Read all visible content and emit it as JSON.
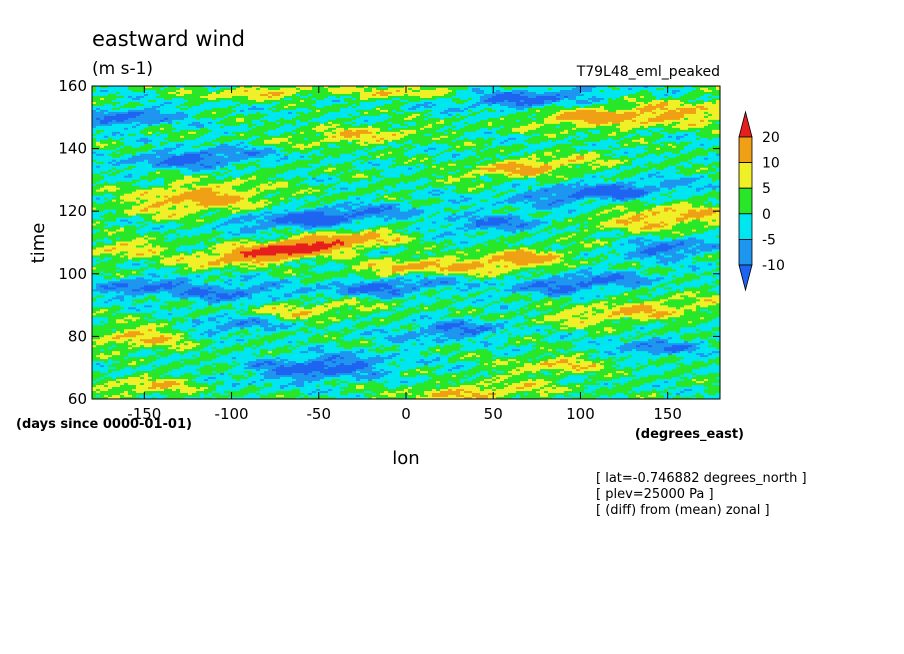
{
  "chart_data": {
    "type": "heatmap",
    "title": "eastward wind",
    "subtitle": "(m s-1)",
    "run_label": "T79L48_eml_peaked",
    "xlabel": "lon",
    "x_units": "(degrees_east)",
    "ylabel": "time",
    "y_units": "(days since 0000-01-01)",
    "xlim": [
      -180,
      180
    ],
    "ylim": [
      60,
      160
    ],
    "x_ticks": [
      -150,
      -100,
      -50,
      0,
      50,
      100,
      150
    ],
    "y_ticks": [
      60,
      80,
      100,
      120,
      140,
      160
    ],
    "colorbar": {
      "levels": [
        -10,
        -5,
        0,
        5,
        10,
        20
      ],
      "labels": [
        "20",
        "10",
        "5",
        "0",
        "-5",
        "-10"
      ],
      "colors": [
        "#1e64f0",
        "#1e96f0",
        "#00e6f0",
        "#28e628",
        "#f0f028",
        "#f0a014",
        "#e61e1e"
      ]
    },
    "anomalies": [
      {
        "lon": -65,
        "time": 108,
        "amp": 26,
        "sx": 50,
        "sy": 3,
        "tilt": 0.07
      },
      {
        "lon": -120,
        "time": 124,
        "amp": 13,
        "sx": 40,
        "sy": 5,
        "tilt": 0.03
      },
      {
        "lon": 70,
        "time": 134,
        "amp": 12,
        "sx": 40,
        "sy": 3,
        "tilt": 0.05
      },
      {
        "lon": 150,
        "time": 118,
        "amp": 11,
        "sx": 45,
        "sy": 4,
        "tilt": 0.03
      },
      {
        "lon": 60,
        "time": 104,
        "amp": 13,
        "sx": 35,
        "sy": 3.5,
        "tilt": 0.06
      },
      {
        "lon": 0,
        "time": 102,
        "amp": 11,
        "sx": 30,
        "sy": 3,
        "tilt": 0.03
      },
      {
        "lon": 150,
        "time": 151,
        "amp": 11,
        "sx": 50,
        "sy": 4,
        "tilt": 0.03
      },
      {
        "lon": 130,
        "time": 88,
        "amp": 10,
        "sx": 60,
        "sy": 3.5,
        "tilt": 0.05
      },
      {
        "lon": -150,
        "time": 80,
        "amp": 10,
        "sx": 30,
        "sy": 4,
        "tilt": 0.02
      },
      {
        "lon": 40,
        "time": 62,
        "amp": 10,
        "sx": 45,
        "sy": 3,
        "tilt": 0.03
      },
      {
        "lon": -150,
        "time": 64,
        "amp": 9,
        "sx": 30,
        "sy": 3,
        "tilt": 0.02
      },
      {
        "lon": -60,
        "time": 88,
        "amp": 9,
        "sx": 40,
        "sy": 3,
        "tilt": 0.04
      },
      {
        "lon": 90,
        "time": 71,
        "amp": 9,
        "sx": 35,
        "sy": 3,
        "tilt": 0.04
      },
      {
        "lon": -30,
        "time": 144,
        "amp": 9,
        "sx": 40,
        "sy": 3,
        "tilt": 0.03
      },
      {
        "lon": -160,
        "time": 108,
        "amp": 9,
        "sx": 25,
        "sy": 3,
        "tilt": 0.02
      },
      {
        "lon": 100,
        "time": 150,
        "amp": 9,
        "sx": 30,
        "sy": 3,
        "tilt": 0.03
      },
      {
        "lon": -80,
        "time": 158,
        "amp": 9,
        "sx": 40,
        "sy": 2,
        "tilt": 0.02
      },
      {
        "lon": 0,
        "time": 158,
        "amp": 9,
        "sx": 30,
        "sy": 2,
        "tilt": 0.02
      },
      {
        "lon": -50,
        "time": 118,
        "amp": -14,
        "sx": 50,
        "sy": 3,
        "tilt": 0.04
      },
      {
        "lon": 110,
        "time": 126,
        "amp": -13,
        "sx": 50,
        "sy": 3,
        "tilt": 0.04
      },
      {
        "lon": -50,
        "time": 70,
        "amp": -13,
        "sx": 40,
        "sy": 4,
        "tilt": 0.03
      },
      {
        "lon": -120,
        "time": 137,
        "amp": -12,
        "sx": 40,
        "sy": 3,
        "tilt": 0.03
      },
      {
        "lon": -10,
        "time": 96,
        "amp": -12,
        "sx": 40,
        "sy": 3,
        "tilt": 0.04
      },
      {
        "lon": 100,
        "time": 97,
        "amp": -12,
        "sx": 40,
        "sy": 3,
        "tilt": 0.04
      },
      {
        "lon": 70,
        "time": 156,
        "amp": -12,
        "sx": 40,
        "sy": 3,
        "tilt": 0.03
      },
      {
        "lon": -150,
        "time": 96,
        "amp": -11,
        "sx": 30,
        "sy": 3,
        "tilt": 0.03
      },
      {
        "lon": -100,
        "time": 84,
        "amp": -11,
        "sx": 30,
        "sy": 3,
        "tilt": 0.03
      },
      {
        "lon": 30,
        "time": 82,
        "amp": -11,
        "sx": 35,
        "sy": 3,
        "tilt": 0.04
      },
      {
        "lon": 150,
        "time": 108,
        "amp": -11,
        "sx": 30,
        "sy": 3,
        "tilt": 0.03
      },
      {
        "lon": 50,
        "time": 116,
        "amp": -10,
        "sx": 35,
        "sy": 3,
        "tilt": 0.03
      },
      {
        "lon": -160,
        "time": 150,
        "amp": -11,
        "sx": 30,
        "sy": 3,
        "tilt": 0.03
      },
      {
        "lon": 140,
        "time": 76,
        "amp": -10,
        "sx": 30,
        "sy": 3,
        "tilt": 0.03
      },
      {
        "lon": -100,
        "time": 94,
        "amp": -10,
        "sx": 30,
        "sy": 3,
        "tilt": 0.03
      }
    ]
  },
  "notes": [
    "[ lat=-0.746882 degrees_north ]",
    "[ plev=25000 Pa ]",
    "[ (diff) from (mean) zonal ]"
  ]
}
